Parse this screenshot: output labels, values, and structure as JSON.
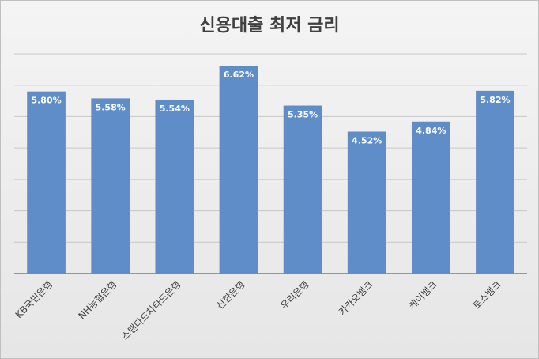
{
  "chart_data": {
    "type": "bar",
    "title": "신용대출 최저 금리",
    "categories": [
      "KB국민은행",
      "NH농협은행",
      "스탠다드차타드은행",
      "신한은행",
      "우리은행",
      "카카오뱅크",
      "케이뱅크",
      "토스뱅크"
    ],
    "values": [
      5.8,
      5.58,
      5.54,
      6.62,
      5.35,
      4.52,
      4.84,
      5.82
    ],
    "value_labels": [
      "5.80%",
      "5.58%",
      "5.54%",
      "6.62%",
      "5.35%",
      "4.52%",
      "4.84%",
      "5.82%"
    ],
    "color": "#5f8dc8",
    "ylim": [
      0,
      7
    ],
    "yticks": [
      0,
      1,
      2,
      3,
      4,
      5,
      6,
      7
    ],
    "grid": true
  }
}
